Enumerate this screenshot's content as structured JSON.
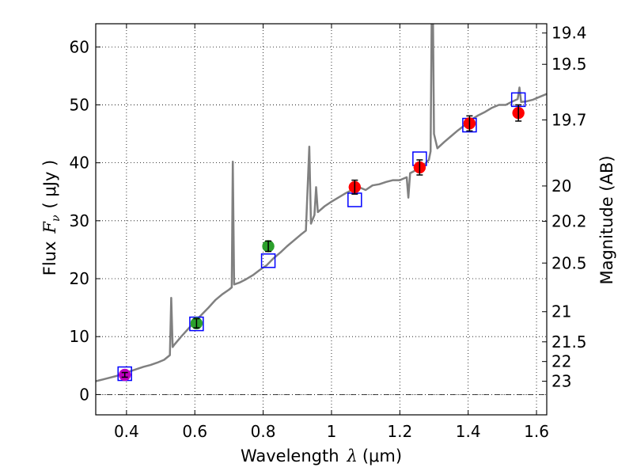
{
  "chart_data": {
    "type": "scatter",
    "xlabel_main": "Wavelength",
    "xlabel_symbol": "λ",
    "xlabel_unit": "(μm)",
    "ylabel_main": "Flux",
    "ylabel_symbol": "F",
    "ylabel_subscript": "ν",
    "ylabel_unit": "( μJy )",
    "y2label": "Magnitude (AB)",
    "xlim": [
      0.31,
      1.63
    ],
    "ylim": [
      -3.5,
      64
    ],
    "grid": true,
    "x_ticks": [
      0.4,
      0.6,
      0.8,
      1.0,
      1.2,
      1.4,
      1.6
    ],
    "x_tick_labels": [
      "0.4",
      "0.6",
      "0.8",
      "1",
      "1.2",
      "1.4",
      "1.6"
    ],
    "y_ticks": [
      0,
      10,
      20,
      30,
      40,
      50,
      60
    ],
    "y_tick_labels": [
      "0",
      "10",
      "20",
      "30",
      "40",
      "50",
      "60"
    ],
    "y2_ticks": [
      {
        "label": "19.4",
        "flux": 62.4
      },
      {
        "label": "19.5",
        "flux": 57.0
      },
      {
        "label": "19.7",
        "flux": 47.4
      },
      {
        "label": "20",
        "flux": 36.0
      },
      {
        "label": "20.2",
        "flux": 29.9
      },
      {
        "label": "20.5",
        "flux": 22.7
      },
      {
        "label": "21",
        "flux": 14.3
      },
      {
        "label": "21.5",
        "flux": 9.1
      },
      {
        "label": "22",
        "flux": 5.7
      },
      {
        "label": "23",
        "flux": 2.3
      }
    ],
    "zero_line_y": 0,
    "spectrum": {
      "color": "#808080",
      "points": [
        [
          0.31,
          2.3
        ],
        [
          0.33,
          2.6
        ],
        [
          0.35,
          2.9
        ],
        [
          0.37,
          3.2
        ],
        [
          0.39,
          3.6
        ],
        [
          0.41,
          4.0
        ],
        [
          0.43,
          4.4
        ],
        [
          0.45,
          4.8
        ],
        [
          0.47,
          5.1
        ],
        [
          0.49,
          5.5
        ],
        [
          0.51,
          6.0
        ],
        [
          0.527,
          6.8
        ],
        [
          0.531,
          16.7
        ],
        [
          0.535,
          8.2
        ],
        [
          0.54,
          8.6
        ],
        [
          0.56,
          10.0
        ],
        [
          0.58,
          11.3
        ],
        [
          0.6,
          12.6
        ],
        [
          0.62,
          13.8
        ],
        [
          0.64,
          15.0
        ],
        [
          0.66,
          16.3
        ],
        [
          0.68,
          17.3
        ],
        [
          0.7,
          18.1
        ],
        [
          0.708,
          18.5
        ],
        [
          0.711,
          40.2
        ],
        [
          0.715,
          19.0
        ],
        [
          0.73,
          19.3
        ],
        [
          0.75,
          19.9
        ],
        [
          0.77,
          20.6
        ],
        [
          0.79,
          21.5
        ],
        [
          0.81,
          22.3
        ],
        [
          0.83,
          23.5
        ],
        [
          0.85,
          24.5
        ],
        [
          0.87,
          25.6
        ],
        [
          0.89,
          26.6
        ],
        [
          0.91,
          27.6
        ],
        [
          0.925,
          28.3
        ],
        [
          0.935,
          42.8
        ],
        [
          0.94,
          29.5
        ],
        [
          0.95,
          31.0
        ],
        [
          0.955,
          35.8
        ],
        [
          0.96,
          31.5
        ],
        [
          0.98,
          32.5
        ],
        [
          1.0,
          33.3
        ],
        [
          1.02,
          34.0
        ],
        [
          1.04,
          34.7
        ],
        [
          1.06,
          35.3
        ],
        [
          1.08,
          35.8
        ],
        [
          1.1,
          35.3
        ],
        [
          1.12,
          36.1
        ],
        [
          1.14,
          36.3
        ],
        [
          1.16,
          36.7
        ],
        [
          1.18,
          37.0
        ],
        [
          1.2,
          37.0
        ],
        [
          1.22,
          37.5
        ],
        [
          1.225,
          34.0
        ],
        [
          1.23,
          38.2
        ],
        [
          1.25,
          38.8
        ],
        [
          1.27,
          39.6
        ],
        [
          1.285,
          40.5
        ],
        [
          1.29,
          42.0
        ],
        [
          1.293,
          64.0
        ],
        [
          1.297,
          65.0
        ],
        [
          1.3,
          45.0
        ],
        [
          1.31,
          42.5
        ],
        [
          1.33,
          43.6
        ],
        [
          1.35,
          44.6
        ],
        [
          1.37,
          45.6
        ],
        [
          1.39,
          46.5
        ],
        [
          1.41,
          47.5
        ],
        [
          1.43,
          48.2
        ],
        [
          1.45,
          48.8
        ],
        [
          1.47,
          49.5
        ],
        [
          1.49,
          50.0
        ],
        [
          1.51,
          50.0
        ],
        [
          1.53,
          50.6
        ],
        [
          1.545,
          51.0
        ],
        [
          1.55,
          53.0
        ],
        [
          1.555,
          50.5
        ],
        [
          1.57,
          50.6
        ],
        [
          1.59,
          50.9
        ],
        [
          1.61,
          51.4
        ],
        [
          1.63,
          51.9
        ]
      ]
    },
    "model_points": {
      "marker": "open-square",
      "color": "#0000ff",
      "x": [
        0.395,
        0.605,
        0.815,
        1.068,
        1.258,
        1.404,
        1.547
      ],
      "y": [
        3.6,
        12.2,
        23.1,
        33.6,
        40.7,
        46.5,
        50.9
      ]
    },
    "observed_points": {
      "marker": "filled-circle",
      "x": [
        0.395,
        0.605,
        0.815,
        1.068,
        1.258,
        1.404,
        1.547
      ],
      "y": [
        3.4,
        12.3,
        25.6,
        35.8,
        39.2,
        46.8,
        48.6
      ],
      "err": [
        0.4,
        0.8,
        0.9,
        1.2,
        1.3,
        1.3,
        1.4
      ],
      "colors": [
        "#bf00bf",
        "#2ca02c",
        "#2ca02c",
        "#ff0000",
        "#ff0000",
        "#ff0000",
        "#ff0000"
      ]
    }
  }
}
